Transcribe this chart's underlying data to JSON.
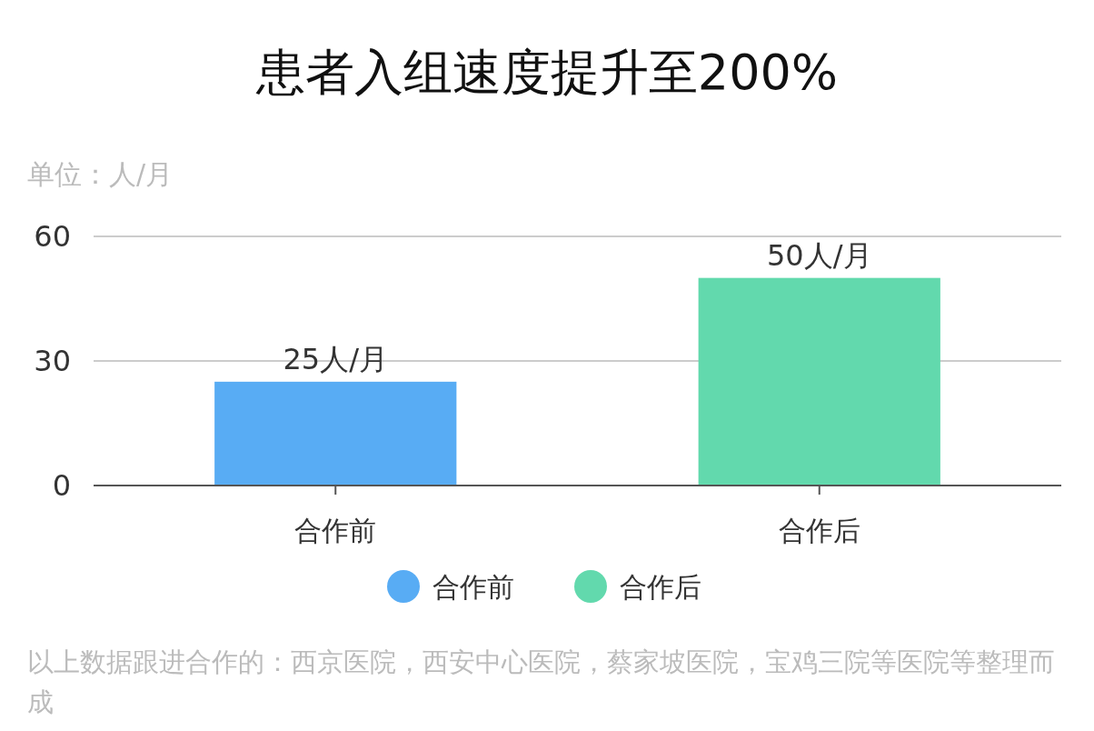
{
  "chart_data": {
    "type": "bar",
    "title": "患者入组速度提升至200%",
    "ylabel": "单位：人/月",
    "categories": [
      "合作前",
      "合作后"
    ],
    "series": [
      {
        "name": "合作前",
        "color": "#58acf4",
        "values": [
          25,
          null
        ],
        "value_labels": [
          "25人/月",
          null
        ]
      },
      {
        "name": "合作后",
        "color": "#62d9ad",
        "values": [
          null,
          50
        ],
        "value_labels": [
          null,
          "50人/月"
        ]
      }
    ],
    "ylim": [
      0,
      60
    ],
    "yticks": [
      0,
      30,
      60
    ],
    "grid": "y",
    "legend": "bottom",
    "annotations": [
      "以上数据跟进合作的：西京医院，西安中心医院，蔡家坡医院，宝鸡三院等医院等整理而成"
    ]
  }
}
